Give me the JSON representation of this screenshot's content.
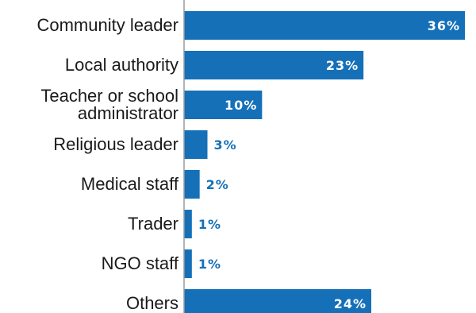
{
  "chart_data": {
    "type": "bar",
    "orientation": "horizontal",
    "categories": [
      "Community leader",
      "Local authority",
      "Teacher or school administrator",
      "Religious leader",
      "Medical staff",
      "Trader",
      "NGO staff",
      "Others"
    ],
    "category_lines": [
      [
        "Community leader"
      ],
      [
        "Local authority"
      ],
      [
        "Teacher or school",
        "administrator"
      ],
      [
        "Religious leader"
      ],
      [
        "Medical staff"
      ],
      [
        "Trader"
      ],
      [
        "NGO staff"
      ],
      [
        "Others"
      ]
    ],
    "values": [
      36,
      23,
      10,
      3,
      2,
      1,
      1,
      24
    ],
    "value_labels": [
      "36%",
      "23%",
      "10%",
      "3%",
      "2%",
      "1%",
      "1%",
      "24%"
    ],
    "xlim": [
      0,
      36
    ],
    "grid": false,
    "legend": "none",
    "colors": {
      "bar": "#1570b8",
      "label_inside": "#ffffff",
      "label_outside": "#1570b8",
      "axis": "#9a9a9a",
      "text": "#1a1a1a"
    }
  }
}
